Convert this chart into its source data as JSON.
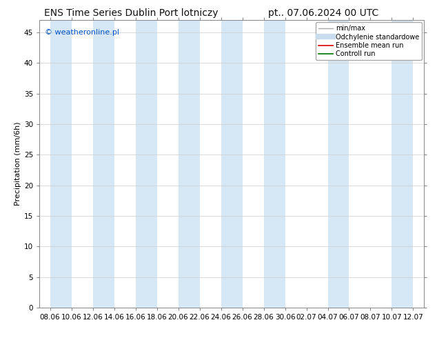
{
  "title": "ENS Time Series Dublin Port lotniczy",
  "title_right": "pt.. 07.06.2024 00 UTC",
  "ylabel": "Precipitation (mm/6h)",
  "watermark": "© weatheronline.pl",
  "watermark_color": "#0055cc",
  "ylim": [
    0,
    47
  ],
  "yticks": [
    0,
    5,
    10,
    15,
    20,
    25,
    30,
    35,
    40,
    45
  ],
  "x_labels": [
    "08.06",
    "10.06",
    "12.06",
    "14.06",
    "16.06",
    "18.06",
    "20.06",
    "22.06",
    "24.06",
    "26.06",
    "28.06",
    "30.06",
    "02.07",
    "04.07",
    "06.07",
    "08.07",
    "10.07",
    "12.07"
  ],
  "shaded_bands_idx": [
    0,
    2,
    4,
    6,
    8,
    10,
    13,
    16
  ],
  "band_color": "#d6e8f5",
  "legend_entries": [
    {
      "label": "min/max",
      "color": "#aaaaaa",
      "lw": 1.0
    },
    {
      "label": "Odchylenie standardowe",
      "color": "#c8dced",
      "lw": 6
    },
    {
      "label": "Ensemble mean run",
      "color": "#dd0000",
      "lw": 1.2
    },
    {
      "label": "Controll run",
      "color": "#007700",
      "lw": 1.2
    }
  ],
  "bg_color": "#ffffff",
  "grid_color": "#cccccc",
  "title_fontsize": 10,
  "tick_fontsize": 7.5,
  "label_fontsize": 8,
  "legend_fontsize": 7,
  "watermark_fontsize": 8
}
